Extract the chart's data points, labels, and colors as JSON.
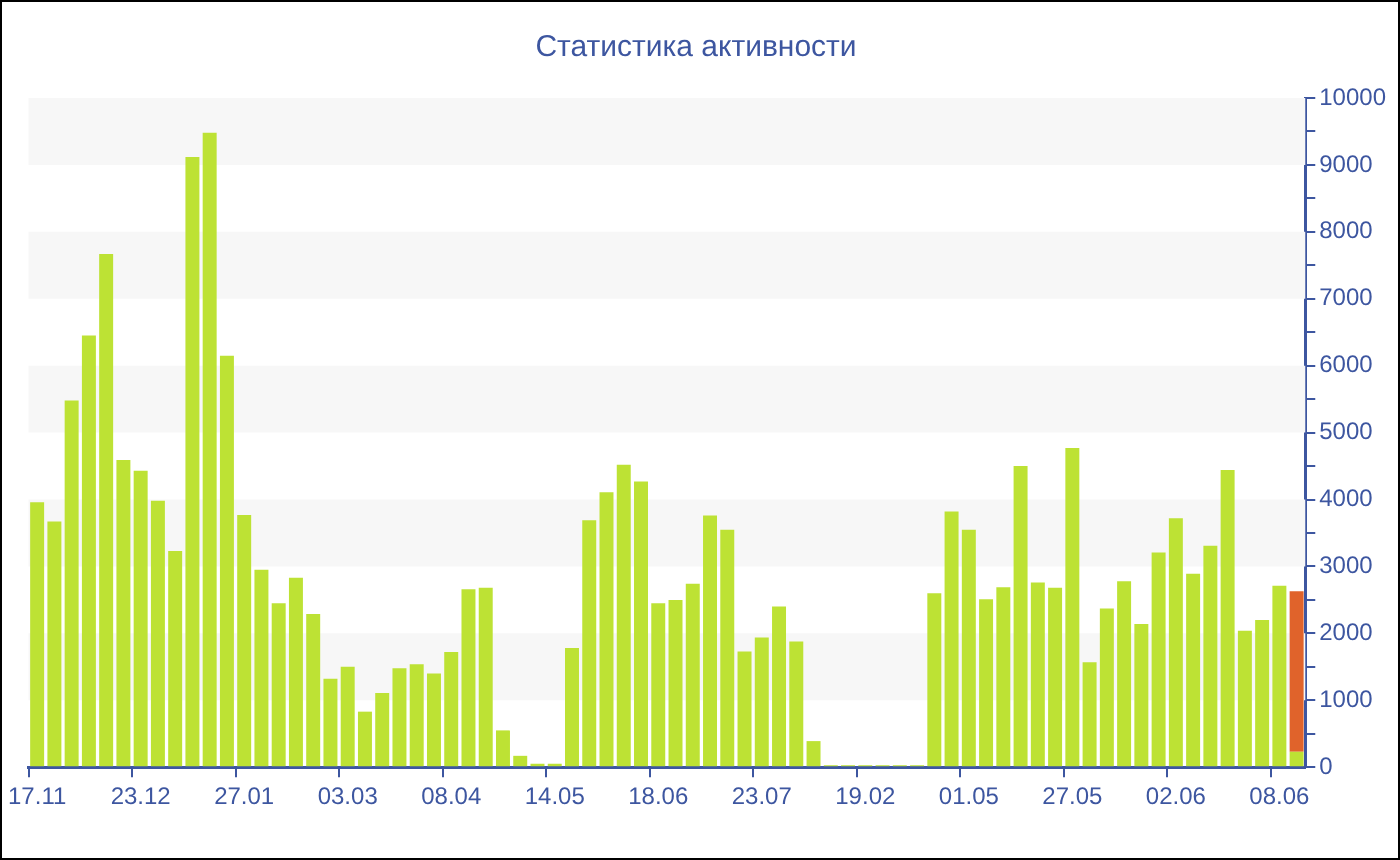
{
  "chart_data": {
    "type": "bar",
    "title": "Статистика активности",
    "stacked": true,
    "categories": [
      "17.11",
      null,
      null,
      null,
      null,
      null,
      "23.12",
      null,
      null,
      null,
      null,
      null,
      "27.01",
      null,
      null,
      null,
      null,
      null,
      "03.03",
      null,
      null,
      null,
      null,
      null,
      "08.04",
      null,
      null,
      null,
      null,
      null,
      "14.05",
      null,
      null,
      null,
      null,
      null,
      "18.06",
      null,
      null,
      null,
      null,
      null,
      "23.07",
      null,
      null,
      null,
      null,
      null,
      "19.02",
      null,
      null,
      null,
      null,
      null,
      "01.05",
      null,
      null,
      null,
      null,
      null,
      "27.05",
      null,
      null,
      null,
      null,
      null,
      "02.06",
      null,
      null,
      null,
      null,
      null,
      "08.06",
      null
    ],
    "series": [
      {
        "color": "#bde234",
        "values": [
          3960,
          3670,
          5480,
          6450,
          7670,
          4590,
          4430,
          3980,
          3230,
          9120,
          9480,
          6150,
          3770,
          2950,
          2450,
          2830,
          2290,
          1320,
          1500,
          830,
          1110,
          1480,
          1540,
          1400,
          1720,
          2660,
          2680,
          550,
          170,
          50,
          50,
          1780,
          3690,
          4110,
          4520,
          4270,
          2450,
          2500,
          2740,
          3760,
          3550,
          1730,
          1940,
          2400,
          1880,
          390,
          30,
          30,
          30,
          30,
          30,
          30,
          2600,
          3820,
          3550,
          2510,
          2690,
          4500,
          2760,
          2680,
          4770,
          1570,
          2370,
          2780,
          2140,
          3210,
          3720,
          2890,
          3310,
          4440,
          2040,
          2200,
          2710,
          230
        ]
      },
      {
        "color": "#e0632b",
        "values": [
          null,
          null,
          null,
          null,
          null,
          null,
          null,
          null,
          null,
          null,
          null,
          null,
          null,
          null,
          null,
          null,
          null,
          null,
          null,
          null,
          null,
          null,
          null,
          null,
          null,
          null,
          null,
          null,
          null,
          null,
          null,
          null,
          null,
          null,
          null,
          null,
          null,
          null,
          null,
          null,
          null,
          null,
          null,
          null,
          null,
          null,
          null,
          null,
          null,
          null,
          null,
          null,
          null,
          null,
          null,
          null,
          null,
          null,
          null,
          null,
          null,
          null,
          null,
          null,
          null,
          null,
          null,
          null,
          null,
          null,
          null,
          null,
          null,
          2400
        ]
      }
    ],
    "ylim": [
      0,
      10000
    ],
    "yticks": [
      0,
      {
        "value": 500,
        "label": null
      },
      1000,
      {
        "value": 1500,
        "label": null
      },
      2000,
      {
        "value": 2500,
        "label": null
      },
      3000,
      {
        "value": 3500,
        "label": null
      },
      4000,
      {
        "value": 4500,
        "label": null
      },
      5000,
      {
        "value": 5500,
        "label": null
      },
      6000,
      {
        "value": 6500,
        "label": null
      },
      7000,
      {
        "value": 7500,
        "label": null
      },
      8000,
      {
        "value": 8500,
        "label": null
      },
      9000,
      {
        "value": 9500,
        "label": null
      },
      10000
    ],
    "bands": [
      {
        "axis": "y",
        "from": 1000,
        "to": 2000,
        "color": "#f7f7f7"
      },
      {
        "axis": "y",
        "from": 3000,
        "to": 4000,
        "color": "#f7f7f7"
      },
      {
        "axis": "y",
        "from": 5000,
        "to": 6000,
        "color": "#f7f7f7"
      },
      {
        "axis": "y",
        "from": 7000,
        "to": 8000,
        "color": "#f7f7f7"
      },
      {
        "axis": "y",
        "from": 9000,
        "to": 10000,
        "color": "#f7f7f7"
      }
    ],
    "legend": false
  }
}
